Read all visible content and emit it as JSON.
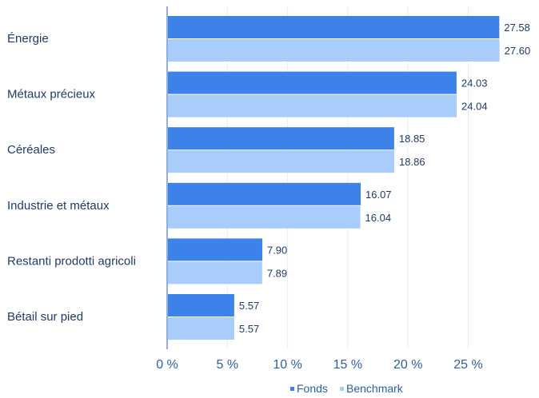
{
  "chart_data": {
    "type": "bar",
    "orientation": "horizontal",
    "categories": [
      "Énergie",
      "Métaux précieux",
      "Céréales",
      "Industrie et métaux",
      "Restanti prodotti agricoli",
      "Bétail sur pied"
    ],
    "series": [
      {
        "name": "Fonds",
        "color": "#3d82e8",
        "values": [
          27.58,
          24.03,
          18.85,
          16.07,
          7.9,
          5.57
        ],
        "labels": [
          "27.58",
          "24.03",
          "18.85",
          "16.07",
          "7.90",
          "5.57"
        ]
      },
      {
        "name": "Benchmark",
        "color": "#a9cdfa",
        "values": [
          27.6,
          24.04,
          18.86,
          16.04,
          7.89,
          5.57
        ],
        "labels": [
          "27.60",
          "24.04",
          "18.86",
          "16.04",
          "7.89",
          "5.57"
        ]
      }
    ],
    "xlim": [
      0,
      27.6
    ],
    "xticks": [
      0,
      5,
      10,
      15,
      20,
      25
    ],
    "xtick_labels": [
      "0 %",
      "5 %",
      "10 %",
      "15 %",
      "20 %",
      "25 %"
    ],
    "grid": "vertical",
    "legend": "bottom-right"
  }
}
